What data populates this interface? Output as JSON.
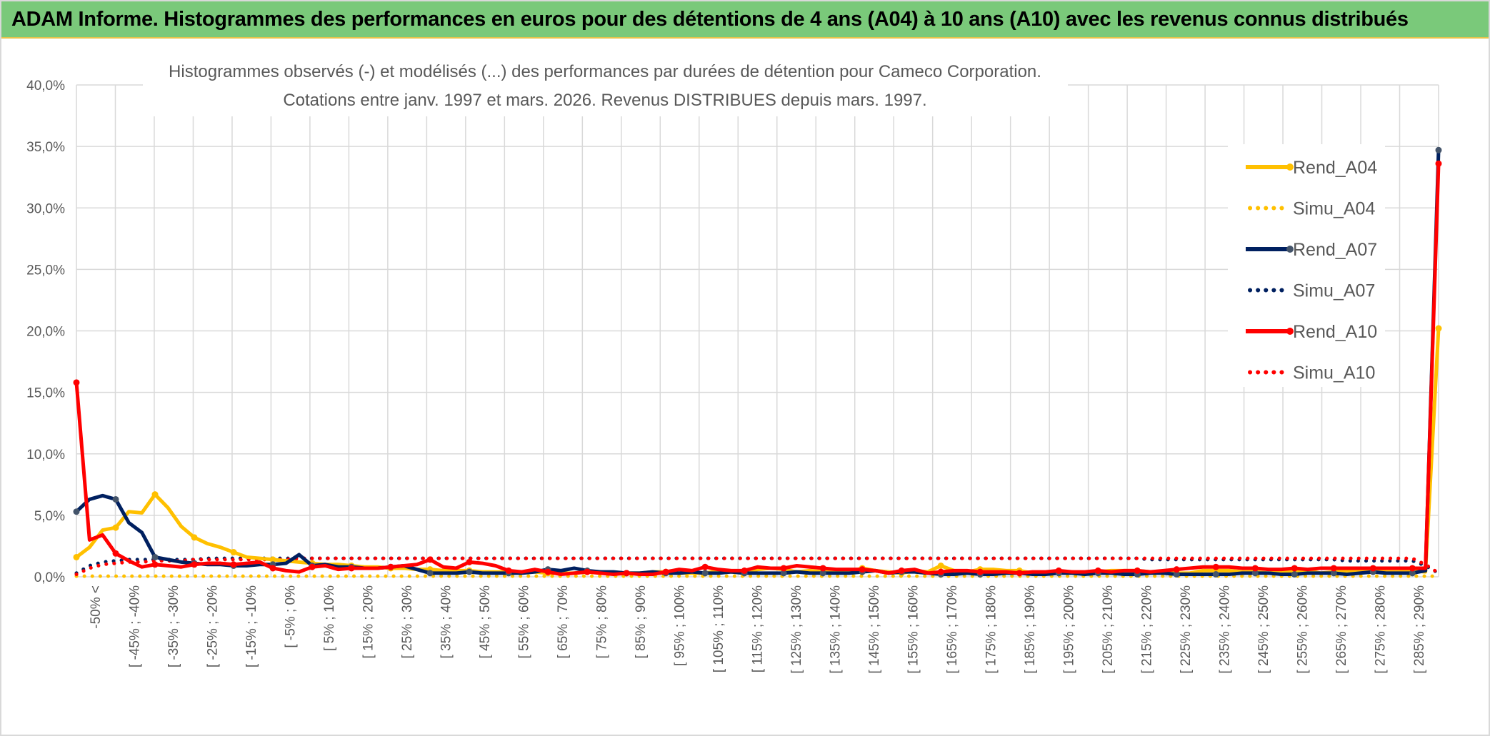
{
  "banner": {
    "title": "ADAM Informe. Histogrammes des performances en euros pour des détentions de 4 ans (A04) à 10 ans (A10) avec les revenus connus distribués"
  },
  "chart_data": {
    "type": "line",
    "title": "ADAM Informe. Histogrammes des performances en euros pour des détentions de 4 ans (A04) à 10 ans (A10) avec les revenus connus distribués",
    "subtitle_lines": [
      "Histogrammes observés (-) et modélisés (...) des performances par durées de détention pour Cameco Corporation.",
      "Cotations entre janv. 1997 et mars. 2026. Revenus DISTRIBUES depuis mars. 1997."
    ],
    "xlabel": "",
    "ylabel": "",
    "ylim": [
      0,
      40
    ],
    "y_ticks": [
      "0,0%",
      "5,0%",
      "10,0%",
      "15,0%",
      "20,0%",
      "25,0%",
      "30,0%",
      "35,0%",
      "40,0%"
    ],
    "grid": true,
    "legend_position": "top-right",
    "x_tick_labels": [
      "-50% <",
      "[ -45% ; -40%",
      "[ -35% ; -30%",
      "[ -25% ; -20%",
      "[ -15% ; -10%",
      "[ -5% ; 0%",
      "[ 5% ; 10%",
      "[ 15% ; 20%",
      "[ 25% ; 30%",
      "[ 35% ; 40%",
      "[ 45% ; 50%",
      "[ 55% ; 60%",
      "[ 65% ; 70%",
      "[ 75% ; 80%",
      "[ 85% ; 90%",
      "[ 95% ; 100%",
      "[ 105% ; 110%",
      "[ 115% ; 120%",
      "[ 125% ; 130%",
      "[ 135% ; 140%",
      "[ 145% ; 150%",
      "[ 155% ; 160%",
      "[ 165% ; 170%",
      "[ 175% ; 180%",
      "[ 185% ; 190%",
      "[ 195% ; 200%",
      "[ 205% ; 210%",
      "[ 215% ; 220%",
      "[ 225% ; 230%",
      "[ 235% ; 240%",
      "[ 245% ; 250%",
      "[ 255% ; 260%",
      "[ 265% ; 270%",
      "[ 275% ; 280%",
      "[ 285% ; 290%"
    ],
    "series": [
      {
        "name": "Rend_A04",
        "style": "solid",
        "color": "#ffc000",
        "values": [
          1.6,
          2.4,
          3.8,
          4.0,
          5.3,
          5.2,
          6.7,
          5.6,
          4.1,
          3.2,
          2.7,
          2.4,
          2.0,
          1.6,
          1.5,
          1.4,
          1.3,
          1.2,
          1.1,
          1.0,
          1.0,
          0.9,
          0.8,
          0.8,
          0.7,
          0.7,
          0.6,
          0.6,
          0.5,
          0.5,
          0.5,
          0.4,
          0.4,
          0.4,
          0.4,
          0.4,
          0.3,
          0.3,
          0.3,
          0.4,
          0.4,
          0.3,
          0.3,
          0.3,
          0.4,
          0.4,
          0.3,
          0.3,
          0.3,
          0.5,
          0.4,
          0.3,
          0.6,
          0.7,
          0.6,
          0.4,
          0.5,
          0.4,
          0.5,
          0.4,
          0.7,
          0.5,
          0.4,
          0.3,
          0.5,
          0.4,
          0.9,
          0.5,
          0.4,
          0.6,
          0.6,
          0.5,
          0.5,
          0.3,
          0.3,
          0.4,
          0.4,
          0.3,
          0.4,
          0.5,
          0.5,
          0.5,
          0.4,
          0.4,
          0.3,
          0.3,
          0.5,
          0.5,
          0.5,
          0.4,
          0.4,
          0.3,
          0.4,
          0.4,
          0.5,
          0.3,
          0.4,
          0.5,
          0.4,
          0.5,
          0.4,
          0.4,
          0.5,
          0.4,
          20.2
        ]
      },
      {
        "name": "Simu_A04",
        "style": "dotted",
        "color": "#ffc000",
        "values": [
          0.05,
          0.05,
          0.05,
          0.05,
          0.05,
          0.05,
          0.05,
          0.05,
          0.05,
          0.05,
          0.05,
          0.05,
          0.05,
          0.05,
          0.05,
          0.05,
          0.05,
          0.05,
          0.05,
          0.05,
          0.05,
          0.05,
          0.05,
          0.05,
          0.05,
          0.05,
          0.05,
          0.05,
          0.05,
          0.05,
          0.05,
          0.05,
          0.05,
          0.05,
          0.05,
          0.05,
          0.05,
          0.05,
          0.05,
          0.05,
          0.05,
          0.05,
          0.05,
          0.05,
          0.05,
          0.05,
          0.05,
          0.05,
          0.05,
          0.05,
          0.05,
          0.05,
          0.05,
          0.05,
          0.05,
          0.05,
          0.05,
          0.05,
          0.05,
          0.05,
          0.05,
          0.05,
          0.05,
          0.05,
          0.05,
          0.05,
          0.05,
          0.05,
          0.05,
          0.05,
          0.05,
          0.05,
          0.05,
          0.05,
          0.05,
          0.05,
          0.05,
          0.05,
          0.05,
          0.05,
          0.05,
          0.05,
          0.05,
          0.05,
          0.05,
          0.05,
          0.05,
          0.05,
          0.05,
          0.05,
          0.05,
          0.05,
          0.05,
          0.05,
          0.05,
          0.05,
          0.05,
          0.05,
          0.05,
          0.05,
          0.05,
          0.05,
          0.05,
          0.05,
          0.05
        ]
      },
      {
        "name": "Rend_A07",
        "style": "solid",
        "color": "#002060",
        "values": [
          5.3,
          6.3,
          6.6,
          6.3,
          4.4,
          3.6,
          1.6,
          1.4,
          1.2,
          1.1,
          1.0,
          1.0,
          0.9,
          0.9,
          1.0,
          1.0,
          1.1,
          1.8,
          0.9,
          1.0,
          0.8,
          0.8,
          0.7,
          0.7,
          0.8,
          0.9,
          0.6,
          0.3,
          0.3,
          0.3,
          0.4,
          0.3,
          0.3,
          0.3,
          0.3,
          0.4,
          0.6,
          0.5,
          0.7,
          0.5,
          0.4,
          0.4,
          0.3,
          0.3,
          0.4,
          0.3,
          0.3,
          0.4,
          0.3,
          0.3,
          0.4,
          0.3,
          0.3,
          0.3,
          0.3,
          0.4,
          0.3,
          0.3,
          0.3,
          0.3,
          0.4,
          0.5,
          0.3,
          0.4,
          0.4,
          0.3,
          0.2,
          0.2,
          0.3,
          0.2,
          0.2,
          0.3,
          0.3,
          0.2,
          0.2,
          0.3,
          0.3,
          0.2,
          0.3,
          0.3,
          0.2,
          0.2,
          0.3,
          0.3,
          0.2,
          0.2,
          0.2,
          0.2,
          0.2,
          0.3,
          0.3,
          0.3,
          0.2,
          0.2,
          0.3,
          0.3,
          0.3,
          0.2,
          0.3,
          0.4,
          0.3,
          0.3,
          0.3,
          0.5,
          34.7
        ]
      },
      {
        "name": "Simu_A07",
        "style": "dotted",
        "color": "#002060",
        "values": [
          0.3,
          0.9,
          1.2,
          1.3,
          1.4,
          1.4,
          1.4,
          1.4,
          1.4,
          1.4,
          1.5,
          1.5,
          1.5,
          1.5,
          1.5,
          1.5,
          1.5,
          1.5,
          1.5,
          1.5,
          1.5,
          1.5,
          1.5,
          1.5,
          1.5,
          1.5,
          1.5,
          1.5,
          1.5,
          1.5,
          1.5,
          1.5,
          1.5,
          1.5,
          1.5,
          1.5,
          1.5,
          1.5,
          1.5,
          1.5,
          1.5,
          1.5,
          1.5,
          1.5,
          1.5,
          1.5,
          1.5,
          1.5,
          1.5,
          1.5,
          1.5,
          1.5,
          1.5,
          1.5,
          1.5,
          1.5,
          1.5,
          1.5,
          1.5,
          1.5,
          1.5,
          1.5,
          1.5,
          1.5,
          1.5,
          1.5,
          1.5,
          1.5,
          1.5,
          1.5,
          1.5,
          1.5,
          1.5,
          1.5,
          1.5,
          1.5,
          1.5,
          1.5,
          1.5,
          1.5,
          1.5,
          1.5,
          1.4,
          1.4,
          1.4,
          1.4,
          1.4,
          1.4,
          1.4,
          1.4,
          1.4,
          1.4,
          1.4,
          1.4,
          1.4,
          1.4,
          1.4,
          1.3,
          1.3,
          1.3,
          1.3,
          1.3,
          1.3,
          0.9,
          0.3
        ]
      },
      {
        "name": "Rend_A10",
        "style": "solid",
        "color": "#ff0000",
        "values": [
          15.8,
          3.0,
          3.4,
          1.9,
          1.3,
          0.8,
          1.0,
          0.9,
          0.8,
          1.0,
          1.1,
          1.1,
          1.0,
          1.1,
          1.2,
          0.7,
          0.5,
          0.4,
          0.8,
          0.9,
          0.6,
          0.7,
          0.7,
          0.7,
          0.8,
          0.9,
          1.0,
          1.4,
          0.8,
          0.7,
          1.2,
          1.1,
          0.9,
          0.5,
          0.4,
          0.6,
          0.4,
          0.2,
          0.3,
          0.4,
          0.3,
          0.2,
          0.3,
          0.2,
          0.2,
          0.4,
          0.6,
          0.5,
          0.8,
          0.6,
          0.5,
          0.5,
          0.8,
          0.7,
          0.7,
          0.9,
          0.8,
          0.7,
          0.6,
          0.6,
          0.6,
          0.5,
          0.3,
          0.5,
          0.6,
          0.3,
          0.4,
          0.5,
          0.5,
          0.4,
          0.4,
          0.4,
          0.3,
          0.4,
          0.4,
          0.5,
          0.4,
          0.4,
          0.5,
          0.4,
          0.5,
          0.5,
          0.4,
          0.5,
          0.6,
          0.7,
          0.8,
          0.8,
          0.8,
          0.7,
          0.7,
          0.6,
          0.6,
          0.7,
          0.6,
          0.7,
          0.7,
          0.7,
          0.7,
          0.7,
          0.7,
          0.7,
          0.7,
          0.7,
          33.6
        ]
      },
      {
        "name": "Simu_A10",
        "style": "dotted",
        "color": "#ff0000",
        "values": [
          0.2,
          0.7,
          1.0,
          1.1,
          1.2,
          1.2,
          1.3,
          1.3,
          1.3,
          1.4,
          1.4,
          1.4,
          1.4,
          1.4,
          1.4,
          1.4,
          1.4,
          1.5,
          1.5,
          1.5,
          1.5,
          1.5,
          1.5,
          1.5,
          1.5,
          1.5,
          1.5,
          1.5,
          1.5,
          1.5,
          1.5,
          1.5,
          1.5,
          1.5,
          1.5,
          1.5,
          1.5,
          1.5,
          1.5,
          1.5,
          1.5,
          1.5,
          1.5,
          1.5,
          1.5,
          1.5,
          1.5,
          1.5,
          1.5,
          1.5,
          1.5,
          1.5,
          1.5,
          1.5,
          1.5,
          1.5,
          1.5,
          1.5,
          1.5,
          1.5,
          1.5,
          1.5,
          1.5,
          1.5,
          1.5,
          1.5,
          1.5,
          1.5,
          1.5,
          1.5,
          1.5,
          1.5,
          1.5,
          1.5,
          1.5,
          1.5,
          1.5,
          1.5,
          1.5,
          1.5,
          1.5,
          1.5,
          1.5,
          1.5,
          1.5,
          1.5,
          1.5,
          1.5,
          1.5,
          1.5,
          1.5,
          1.5,
          1.5,
          1.5,
          1.5,
          1.5,
          1.5,
          1.5,
          1.5,
          1.5,
          1.5,
          1.5,
          1.5,
          1.0,
          0.3
        ]
      }
    ]
  }
}
